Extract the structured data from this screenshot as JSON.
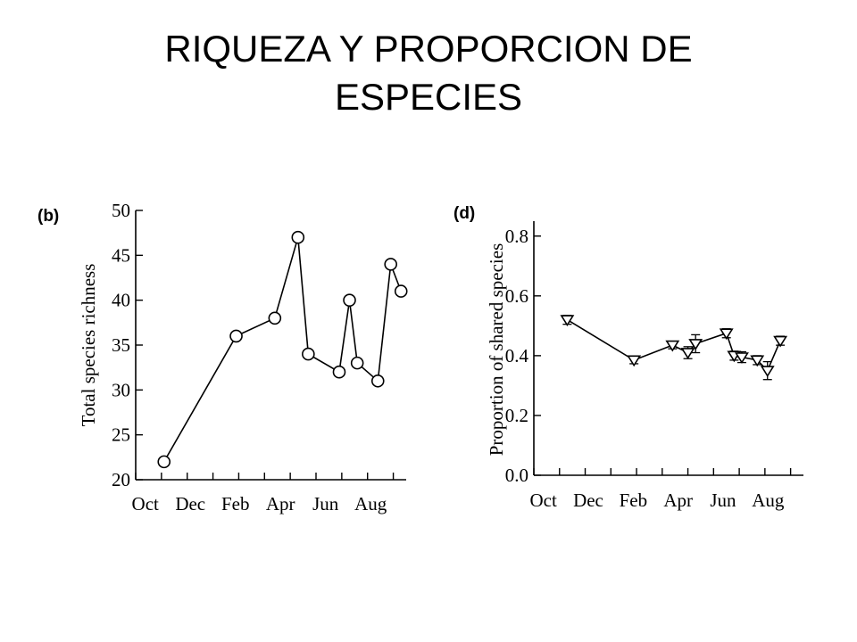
{
  "slide": {
    "title_line1": "RIQUEZA Y PROPORCION DE",
    "title_line2": "ESPECIES"
  },
  "chart_data": [
    {
      "panel": "(b)",
      "type": "line",
      "marker": "circle",
      "xlabel": "",
      "ylabel": "Total species richness",
      "xticks": [
        "Oct",
        "Dec",
        "Feb",
        "Apr",
        "Jun",
        "Aug"
      ],
      "yticks": [
        "20",
        "25",
        "30",
        "35",
        "40",
        "45",
        "50"
      ],
      "xlim": [
        0,
        10.5
      ],
      "ylim": [
        20,
        50
      ],
      "series": [
        {
          "x": [
            1.1,
            3.9,
            5.4,
            6.3,
            6.7,
            7.9,
            8.3,
            8.6,
            9.4,
            9.9,
            10.3
          ],
          "y": [
            22,
            36,
            38,
            47,
            34,
            32,
            40,
            33,
            31,
            44,
            41
          ]
        }
      ]
    },
    {
      "panel": "(d)",
      "type": "line",
      "marker": "triangle-down",
      "error_bars": true,
      "xlabel": "",
      "ylabel": "Proportion of shared species",
      "xticks": [
        "Oct",
        "Dec",
        "Feb",
        "Apr",
        "Jun",
        "Aug"
      ],
      "yticks": [
        "0.0",
        "0.2",
        "0.4",
        "0.6",
        "0.8"
      ],
      "xlim": [
        0,
        10.5
      ],
      "ylim": [
        0,
        0.85
      ],
      "series": [
        {
          "x": [
            1.3,
            3.9,
            5.4,
            6.0,
            6.3,
            7.5,
            7.8,
            8.1,
            8.7,
            9.1,
            9.6
          ],
          "y": [
            0.52,
            0.385,
            0.435,
            0.41,
            0.44,
            0.475,
            0.4,
            0.395,
            0.385,
            0.35,
            0.45
          ],
          "err": [
            0.015,
            0.012,
            0.012,
            0.02,
            0.03,
            0.015,
            0.015,
            0.018,
            0.015,
            0.03,
            0.015
          ]
        }
      ]
    }
  ]
}
